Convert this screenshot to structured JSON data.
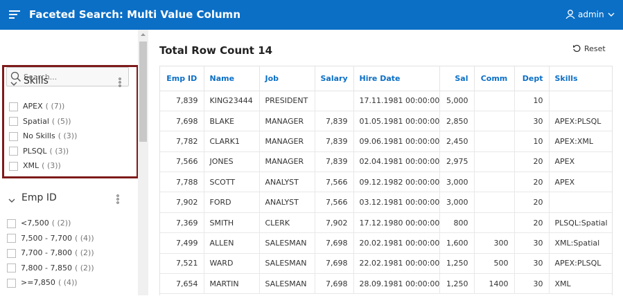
{
  "header": {
    "title": "Faceted Search: Multi Value Column",
    "user": "admin"
  },
  "search": {
    "placeholder": "Search..."
  },
  "facets": [
    {
      "title": "Skills",
      "items": [
        {
          "label": "APEX",
          "count": "( (7))"
        },
        {
          "label": "Spatial",
          "count": "( (5))"
        },
        {
          "label": "No Skills",
          "count": "( (3))"
        },
        {
          "label": "PLSQL",
          "count": "( (3))"
        },
        {
          "label": "XML",
          "count": "( (3))"
        }
      ]
    },
    {
      "title": "Emp ID",
      "items": [
        {
          "label": "<7,500",
          "count": "( (2))"
        },
        {
          "label": "7,500 - 7,700",
          "count": "( (4))"
        },
        {
          "label": "7,700 - 7,800",
          "count": "( (2))"
        },
        {
          "label": "7,800 - 7,850",
          "count": "( (2))"
        },
        {
          "label": ">=7,850",
          "count": "( (4))"
        }
      ]
    }
  ],
  "report": {
    "row_count_label": "Total Row Count 14",
    "reset": "Reset"
  },
  "table": {
    "columns": [
      "Emp ID",
      "Name",
      "Job",
      "Salary",
      "Hire Date",
      "Sal",
      "Comm",
      "Dept",
      "Skills"
    ],
    "rows": [
      [
        "7,839",
        "KING23444",
        "PRESIDENT",
        null,
        "17.11.1981 00:00:00",
        "5,000",
        null,
        "10",
        null
      ],
      [
        "7,698",
        "BLAKE",
        "MANAGER",
        "7,839",
        "01.05.1981 00:00:00",
        "2,850",
        null,
        "30",
        "APEX:PLSQL"
      ],
      [
        "7,782",
        "CLARK1",
        "MANAGER",
        "7,839",
        "09.06.1981 00:00:00",
        "2,450",
        null,
        "10",
        "APEX:XML"
      ],
      [
        "7,566",
        "JONES",
        "MANAGER",
        "7,839",
        "02.04.1981 00:00:00",
        "2,975",
        null,
        "20",
        "APEX"
      ],
      [
        "7,788",
        "SCOTT",
        "ANALYST",
        "7,566",
        "09.12.1982 00:00:00",
        "3,000",
        null,
        "20",
        "APEX"
      ],
      [
        "7,902",
        "FORD",
        "ANALYST",
        "7,566",
        "03.12.1981 00:00:00",
        "3,000",
        null,
        "20",
        null
      ],
      [
        "7,369",
        "SMITH",
        "CLERK",
        "7,902",
        "17.12.1980 00:00:00",
        "800",
        null,
        "20",
        "PLSQL:Spatial"
      ],
      [
        "7,499",
        "ALLEN",
        "SALESMAN",
        "7,698",
        "20.02.1981 00:00:00",
        "1,600",
        "300",
        "30",
        "XML:Spatial"
      ],
      [
        "7,521",
        "WARD",
        "SALESMAN",
        "7,698",
        "22.02.1981 00:00:00",
        "1,250",
        "500",
        "30",
        "APEX:PLSQL"
      ],
      [
        "7,654",
        "MARTIN",
        "SALESMAN",
        "7,698",
        "28.09.1981 00:00:00",
        "1,250",
        "1400",
        "30",
        "XML"
      ]
    ]
  }
}
